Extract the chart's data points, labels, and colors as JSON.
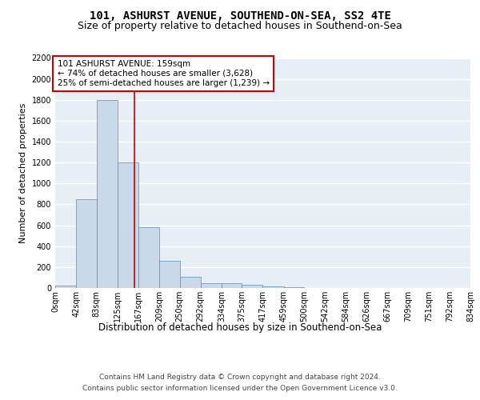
{
  "title1": "101, ASHURST AVENUE, SOUTHEND-ON-SEA, SS2 4TE",
  "title2": "Size of property relative to detached houses in Southend-on-Sea",
  "xlabel": "Distribution of detached houses by size in Southend-on-Sea",
  "ylabel": "Number of detached properties",
  "bin_edges": [
    0,
    42,
    83,
    125,
    167,
    209,
    250,
    292,
    334,
    375,
    417,
    459,
    500,
    542,
    584,
    626,
    667,
    709,
    751,
    792,
    834
  ],
  "bin_labels": [
    "0sqm",
    "42sqm",
    "83sqm",
    "125sqm",
    "167sqm",
    "209sqm",
    "250sqm",
    "292sqm",
    "334sqm",
    "375sqm",
    "417sqm",
    "459sqm",
    "500sqm",
    "542sqm",
    "584sqm",
    "626sqm",
    "667sqm",
    "709sqm",
    "751sqm",
    "792sqm",
    "834sqm"
  ],
  "counts": [
    25,
    850,
    1800,
    1200,
    580,
    260,
    110,
    45,
    45,
    30,
    15,
    5,
    2,
    1,
    1,
    0,
    0,
    0,
    0,
    0
  ],
  "bar_color": "#c9d9ea",
  "bar_edge_color": "#5b8db8",
  "bg_color": "#e8eef5",
  "grid_color": "#ffffff",
  "property_line_x": 159,
  "property_line_color": "#cc0000",
  "annotation_text": "101 ASHURST AVENUE: 159sqm\n← 74% of detached houses are smaller (3,628)\n25% of semi-detached houses are larger (1,239) →",
  "annotation_box_color": "#ffffff",
  "annotation_box_edge_color": "#cc0000",
  "ylim": [
    0,
    2200
  ],
  "yticks": [
    0,
    200,
    400,
    600,
    800,
    1000,
    1200,
    1400,
    1600,
    1800,
    2000,
    2200
  ],
  "footer1": "Contains HM Land Registry data © Crown copyright and database right 2024.",
  "footer2": "Contains public sector information licensed under the Open Government Licence v3.0.",
  "title1_fontsize": 10,
  "title2_fontsize": 9,
  "xlabel_fontsize": 8.5,
  "ylabel_fontsize": 8,
  "tick_fontsize": 7,
  "annotation_fontsize": 7.5,
  "footer_fontsize": 6.5
}
